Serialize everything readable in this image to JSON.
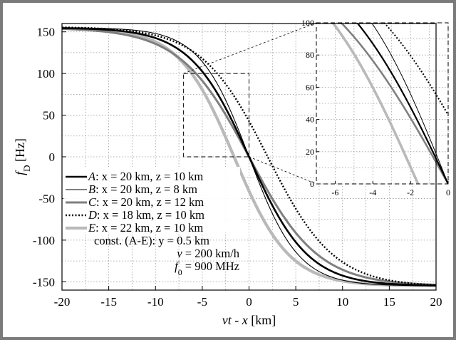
{
  "chart_data": {
    "type": "line",
    "xlabel_parts": [
      "vt",
      " - ",
      "x",
      " [km]"
    ],
    "ylabel_parts": [
      "f",
      "D",
      " [Hz]"
    ],
    "xlim": [
      -20,
      20
    ],
    "ylim": [
      -160,
      160
    ],
    "xticks": [
      -20,
      -15,
      -10,
      -5,
      0,
      5,
      10,
      15,
      20
    ],
    "yticks": [
      150,
      100,
      50,
      0,
      -50,
      -100,
      -150
    ],
    "grid": true,
    "legend_position": "bottom-left",
    "series": [
      {
        "key": "A",
        "label_parts": [
          "A",
          ": x = 20 km, z = 10 km"
        ],
        "color": "#000000",
        "width": 2.6,
        "dash": "",
        "amplitude": 155,
        "scale": 6.3
      },
      {
        "key": "B",
        "label_parts": [
          "B",
          ": x = 20 km, z = 8 km"
        ],
        "color": "#000000",
        "width": 1.1,
        "dash": "",
        "amplitude": 155,
        "scale": 5.3
      },
      {
        "key": "C",
        "label_parts": [
          "C",
          ": x = 20 km, z = 12 km"
        ],
        "color": "#7f7f7f",
        "width": 3.0,
        "dash": "",
        "amplitude": 155,
        "scale": 7.4
      },
      {
        "key": "D",
        "label_parts": [
          "D",
          ": x = 18 km, z = 10 km"
        ],
        "color": "#000000",
        "width": 2.4,
        "dash": "2 2.5",
        "amplitude": 156,
        "scale": 7.1,
        "offset": 2.0
      },
      {
        "key": "E",
        "label_parts": [
          "E",
          ": x = 22 km, z = 10 km"
        ],
        "color": "#b9b9b9",
        "width": 4.2,
        "dash": "",
        "amplitude": 155,
        "scale": 5.9,
        "offset": -1.6
      }
    ],
    "notes": [
      {
        "parts": [
          "const. (A-E): y = 0.5 km"
        ]
      },
      {
        "parts": [
          "v",
          " = 200 km/h"
        ]
      },
      {
        "parts": [
          "f",
          "0",
          " = 900 MHz"
        ]
      }
    ],
    "inset": {
      "xlim": [
        -7,
        0
      ],
      "ylim": [
        0,
        100
      ],
      "xticks": [
        -6,
        -4,
        -2,
        0
      ],
      "yticks": [
        100,
        80,
        60,
        40,
        20,
        0
      ]
    }
  }
}
